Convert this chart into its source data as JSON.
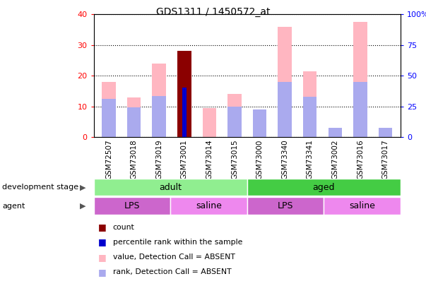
{
  "title": "GDS1311 / 1450572_at",
  "samples": [
    "GSM72507",
    "GSM73018",
    "GSM73019",
    "GSM73001",
    "GSM73014",
    "GSM73015",
    "GSM73000",
    "GSM73340",
    "GSM73341",
    "GSM73002",
    "GSM73016",
    "GSM73017"
  ],
  "value_absent": [
    18.0,
    13.0,
    24.0,
    null,
    9.5,
    14.0,
    8.5,
    36.0,
    21.5,
    null,
    37.5,
    null
  ],
  "rank_absent_pct": [
    31.25,
    24.5,
    33.75,
    null,
    null,
    25.0,
    22.5,
    45.0,
    33.0,
    7.5,
    45.0,
    7.5
  ],
  "value_present": [
    null,
    null,
    null,
    28.0,
    null,
    null,
    null,
    null,
    null,
    null,
    null,
    null
  ],
  "rank_present_pct": [
    null,
    null,
    null,
    40.5,
    null,
    null,
    null,
    null,
    null,
    null,
    null,
    null
  ],
  "ylim_left": [
    0,
    40
  ],
  "ylim_right": [
    0,
    100
  ],
  "yticks_left": [
    0,
    10,
    20,
    30,
    40
  ],
  "yticks_right": [
    0,
    25,
    50,
    75,
    100
  ],
  "pink_color": "#FFB6C1",
  "lightblue_color": "#AAAAEE",
  "dark_red_color": "#8B0000",
  "blue_color": "#0000CD",
  "dev_stage": [
    {
      "label": "adult",
      "start": 0,
      "end": 6,
      "color": "#90EE90"
    },
    {
      "label": "aged",
      "start": 6,
      "end": 12,
      "color": "#44CC44"
    }
  ],
  "agents": [
    {
      "label": "LPS",
      "start": 0,
      "end": 3,
      "color": "#CC66CC"
    },
    {
      "label": "saline",
      "start": 3,
      "end": 6,
      "color": "#EE88EE"
    },
    {
      "label": "LPS",
      "start": 6,
      "end": 9,
      "color": "#CC66CC"
    },
    {
      "label": "saline",
      "start": 9,
      "end": 12,
      "color": "#EE88EE"
    }
  ],
  "legend_items": [
    {
      "label": "count",
      "color": "#8B0000"
    },
    {
      "label": "percentile rank within the sample",
      "color": "#0000CD"
    },
    {
      "label": "value, Detection Call = ABSENT",
      "color": "#FFB6C1"
    },
    {
      "label": "rank, Detection Call = ABSENT",
      "color": "#AAAAEE"
    }
  ]
}
